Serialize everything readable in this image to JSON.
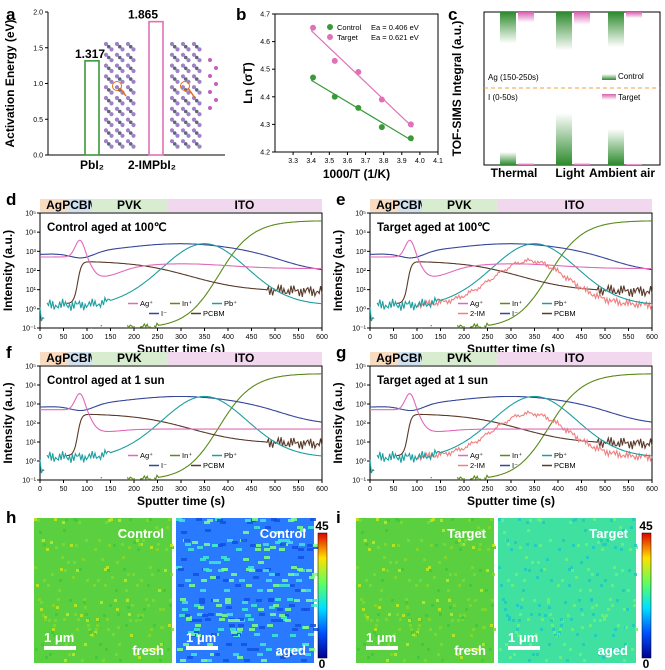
{
  "colors": {
    "ag": "#e06ab8",
    "in": "#5a8a1a",
    "pb": "#1f9ea0",
    "i": "#35459a",
    "pcbm": "#5a3a2a",
    "im": "#f08080",
    "green": "#3a9a3a",
    "pink": "#e070b8"
  },
  "panel_labels": [
    "a",
    "b",
    "c",
    "d",
    "e",
    "f",
    "g",
    "h",
    "i"
  ],
  "chart_data": [
    {
      "panel": "a",
      "type": "bar",
      "ylabel": "Activation Energy (eV)",
      "categories": [
        "PbI₂",
        "2-IMPbI₂"
      ],
      "values": [
        1.317,
        1.865
      ],
      "value_labels": [
        "1.317",
        "1.865"
      ],
      "ylim": [
        0,
        2.0
      ],
      "yticks": [
        "0.0",
        "0.5",
        "1.0",
        "1.5",
        "2.0"
      ]
    },
    {
      "panel": "b",
      "type": "scatter",
      "xlabel": "1000/T (1/K)",
      "ylabel": "Ln (σT)",
      "xlim": [
        3.2,
        4.1
      ],
      "ylim": [
        4.2,
        4.7
      ],
      "xticks": [
        "3.3",
        "3.4",
        "3.5",
        "3.6",
        "3.7",
        "3.8",
        "3.9",
        "4.0",
        "4.1"
      ],
      "yticks": [
        "4.2",
        "4.3",
        "4.4",
        "4.5",
        "4.6",
        "4.7"
      ],
      "series": [
        {
          "name": "Control",
          "ea": "Ea = 0.406 eV",
          "x": [
            3.41,
            3.53,
            3.66,
            3.79,
            3.95
          ],
          "y": [
            4.47,
            4.4,
            4.36,
            4.29,
            4.25
          ],
          "fit": [
            [
              3.4,
              4.46
            ],
            [
              3.96,
              4.24
            ]
          ]
        },
        {
          "name": "Target",
          "ea": "Ea = 0.621 eV",
          "x": [
            3.41,
            3.53,
            3.66,
            3.79,
            3.95
          ],
          "y": [
            4.65,
            4.53,
            4.49,
            4.39,
            4.3
          ],
          "fit": [
            [
              3.4,
              4.64
            ],
            [
              3.96,
              4.29
            ]
          ]
        }
      ]
    },
    {
      "panel": "c",
      "type": "bar",
      "ylabel": "TOF-SIMS Integral (a.u.)",
      "categories": [
        "Thermal",
        "Light",
        "Ambient air"
      ],
      "regions": [
        "Ag (150-250s)",
        "I (0-50s)"
      ],
      "legend": [
        "Control",
        "Target"
      ],
      "ag_control": [
        0.45,
        0.55,
        0.5
      ],
      "ag_target": [
        0.15,
        0.18,
        0.09
      ],
      "i_control": [
        0.18,
        0.72,
        0.5
      ],
      "i_target": [
        0.03,
        0.03,
        0.02
      ]
    },
    {
      "panel": "d",
      "type": "line",
      "title": "Control aged at 100℃",
      "xlabel": "Sputter time (s)",
      "ylabel": "Intensity (a.u.)",
      "xlim": [
        0,
        600
      ],
      "yticks": [
        "10⁻¹",
        "10⁰",
        "10¹",
        "10²",
        "10³",
        "10⁴",
        "10⁵"
      ],
      "xticks": [
        "0",
        "50",
        "100",
        "150",
        "200",
        "250",
        "300",
        "350",
        "400",
        "450",
        "500",
        "550",
        "600"
      ],
      "regions": [
        "Ag",
        "PCBM",
        "PVK",
        "ITO"
      ],
      "region_bounds": [
        0,
        60,
        110,
        270,
        600
      ],
      "series": [
        {
          "name": "Ag⁺"
        },
        {
          "name": "In⁺"
        },
        {
          "name": "Pb⁺"
        },
        {
          "name": "I⁻"
        },
        {
          "name": "PCBM"
        }
      ]
    },
    {
      "panel": "e",
      "type": "line",
      "title": "Target aged at 100℃",
      "xlabel": "Sputter time (s)",
      "ylabel": "Intensity (a.u.)",
      "xlim": [
        0,
        600
      ],
      "regions": [
        "Ag",
        "PCBM",
        "PVK",
        "ITO"
      ],
      "region_bounds": [
        0,
        60,
        110,
        270,
        600
      ],
      "series": [
        {
          "name": "Ag⁺"
        },
        {
          "name": "In⁺"
        },
        {
          "name": "Pb⁺"
        },
        {
          "name": "2-IM"
        },
        {
          "name": "I⁻"
        },
        {
          "name": "PCBM"
        }
      ]
    },
    {
      "panel": "f",
      "type": "line",
      "title": "Control aged at 1 sun",
      "xlabel": "Sputter time (s)",
      "ylabel": "Intensity (a.u.)",
      "xlim": [
        0,
        600
      ],
      "regions": [
        "Ag",
        "PCBM",
        "PVK",
        "ITO"
      ],
      "region_bounds": [
        0,
        60,
        110,
        270,
        600
      ],
      "series": [
        {
          "name": "Ag⁺"
        },
        {
          "name": "In⁺"
        },
        {
          "name": "Pb⁺"
        },
        {
          "name": "I⁻"
        },
        {
          "name": "PCBM"
        }
      ]
    },
    {
      "panel": "g",
      "type": "line",
      "title": "Target aged at 1 sun",
      "xlabel": "Sputter time (s)",
      "ylabel": "Intensity (a.u.)",
      "xlim": [
        0,
        600
      ],
      "regions": [
        "Ag",
        "PCBM",
        "PVK",
        "ITO"
      ],
      "region_bounds": [
        0,
        60,
        110,
        270,
        600
      ],
      "series": [
        {
          "name": "Ag⁺"
        },
        {
          "name": "In⁺"
        },
        {
          "name": "Pb⁺"
        },
        {
          "name": "2-IM"
        },
        {
          "name": "I⁻"
        },
        {
          "name": "PCBM"
        }
      ]
    },
    {
      "panel": "h",
      "type": "heatmap",
      "maps": [
        {
          "label": "Control",
          "state": "fresh"
        },
        {
          "label": "Control",
          "state": "aged"
        }
      ],
      "scale_bar": "1 μm",
      "colorbar": [
        "45",
        "0"
      ]
    },
    {
      "panel": "i",
      "type": "heatmap",
      "maps": [
        {
          "label": "Target",
          "state": "fresh"
        },
        {
          "label": "Target",
          "state": "aged"
        }
      ],
      "scale_bar": "1 μm",
      "colorbar": [
        "45",
        "0"
      ]
    }
  ]
}
